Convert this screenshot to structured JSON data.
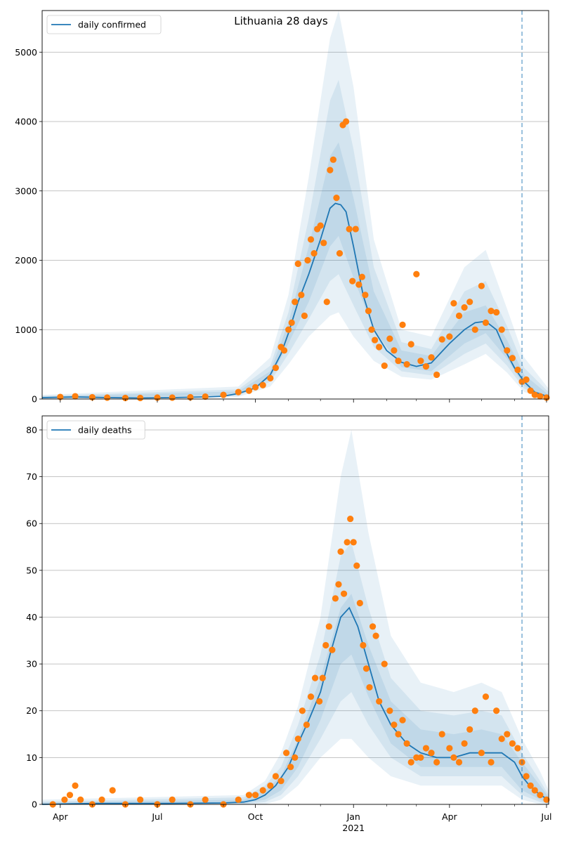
{
  "title": "Lithuania 28 days",
  "colors": {
    "line": "#1f77b4",
    "points": "#ff7f0e",
    "band": "#1f77b4",
    "grid": "#b0b0b0",
    "vline": "#1f77b4"
  },
  "x_axis": {
    "range": [
      "2020-03-15",
      "2021-07-03"
    ],
    "tick_labels": [
      "Apr",
      "Jul",
      "Oct",
      "Jan",
      "Apr",
      "Jul"
    ],
    "tick_dates": [
      "2020-04-01",
      "2020-07-01",
      "2020-10-01",
      "2021-01-01",
      "2021-04-01",
      "2021-07-01"
    ],
    "year_label": "2021",
    "minor_tick_dates": [
      "2020-05-01",
      "2020-06-01",
      "2020-08-01",
      "2020-09-01",
      "2020-11-01",
      "2020-12-01",
      "2021-02-01",
      "2021-03-01",
      "2021-05-01",
      "2021-06-01"
    ]
  },
  "vline_date": "2021-06-08",
  "chart_data": [
    {
      "type": "line",
      "legend": "daily confirmed",
      "legend_loc": "upper left",
      "grid": "y",
      "ylim": [
        0,
        5600
      ],
      "yticks": [
        0,
        1000,
        2000,
        3000,
        4000,
        5000
      ],
      "line": {
        "x": [
          "2020-03-15",
          "2020-04-15",
          "2020-05-15",
          "2020-06-15",
          "2020-07-15",
          "2020-08-15",
          "2020-09-01",
          "2020-09-15",
          "2020-10-01",
          "2020-10-15",
          "2020-10-25",
          "2020-11-01",
          "2020-11-10",
          "2020-11-20",
          "2020-12-01",
          "2020-12-10",
          "2020-12-15",
          "2020-12-20",
          "2020-12-25",
          "2021-01-01",
          "2021-01-10",
          "2021-01-20",
          "2021-02-01",
          "2021-02-15",
          "2021-03-01",
          "2021-03-15",
          "2021-04-01",
          "2021-04-15",
          "2021-04-25",
          "2021-05-05",
          "2021-05-15",
          "2021-05-25",
          "2021-06-01",
          "2021-06-10",
          "2021-06-20",
          "2021-07-03"
        ],
        "y": [
          20,
          30,
          20,
          15,
          20,
          30,
          40,
          80,
          160,
          350,
          650,
          950,
          1400,
          1800,
          2300,
          2750,
          2820,
          2800,
          2700,
          2200,
          1500,
          1000,
          700,
          530,
          470,
          520,
          800,
          1000,
          1100,
          1120,
          1000,
          650,
          450,
          250,
          100,
          30
        ]
      },
      "bands": [
        {
          "level": 1,
          "x": [
            "2020-03-15",
            "2020-09-15",
            "2020-10-15",
            "2020-11-01",
            "2020-11-20",
            "2020-12-10",
            "2020-12-18",
            "2021-01-01",
            "2021-01-20",
            "2021-02-15",
            "2021-03-15",
            "2021-04-15",
            "2021-05-05",
            "2021-05-25",
            "2021-06-10",
            "2021-07-03"
          ],
          "low": [
            0,
            30,
            180,
            500,
            900,
            1200,
            1250,
            900,
            550,
            320,
            280,
            500,
            650,
            380,
            100,
            0
          ],
          "high": [
            60,
            180,
            600,
            1500,
            3200,
            5200,
            5600,
            4500,
            2300,
            1000,
            900,
            1900,
            2150,
            1300,
            600,
            150
          ]
        },
        {
          "level": 2,
          "x": [
            "2020-03-15",
            "2020-09-15",
            "2020-10-15",
            "2020-11-01",
            "2020-11-20",
            "2020-12-10",
            "2020-12-18",
            "2021-01-01",
            "2021-01-20",
            "2021-02-15",
            "2021-03-15",
            "2021-04-15",
            "2021-05-05",
            "2021-05-25",
            "2021-06-10",
            "2021-07-03"
          ],
          "low": [
            0,
            45,
            250,
            650,
            1150,
            1700,
            1800,
            1350,
            750,
            400,
            340,
            650,
            800,
            480,
            150,
            5
          ],
          "high": [
            45,
            140,
            480,
            1250,
            2600,
            4300,
            4600,
            3600,
            1900,
            820,
            720,
            1550,
            1700,
            1050,
            450,
            100
          ]
        },
        {
          "level": 3,
          "x": [
            "2020-03-15",
            "2020-09-15",
            "2020-10-15",
            "2020-11-01",
            "2020-11-20",
            "2020-12-10",
            "2020-12-18",
            "2021-01-01",
            "2021-01-20",
            "2021-02-15",
            "2021-03-15",
            "2021-04-15",
            "2021-05-05",
            "2021-05-25",
            "2021-06-10",
            "2021-07-03"
          ],
          "low": [
            5,
            60,
            300,
            800,
            1400,
            2200,
            2350,
            1750,
            1000,
            460,
            400,
            800,
            950,
            580,
            190,
            10
          ],
          "high": [
            35,
            110,
            400,
            1100,
            2200,
            3500,
            3700,
            2900,
            1550,
            700,
            620,
            1250,
            1350,
            850,
            350,
            60
          ]
        }
      ],
      "points": {
        "x": [
          "2020-04-01",
          "2020-04-15",
          "2020-05-01",
          "2020-05-15",
          "2020-06-01",
          "2020-06-15",
          "2020-07-01",
          "2020-07-15",
          "2020-08-01",
          "2020-08-15",
          "2020-09-01",
          "2020-09-15",
          "2020-09-25",
          "2020-10-01",
          "2020-10-08",
          "2020-10-15",
          "2020-10-20",
          "2020-10-25",
          "2020-10-28",
          "2020-11-01",
          "2020-11-04",
          "2020-11-07",
          "2020-11-10",
          "2020-11-13",
          "2020-11-16",
          "2020-11-19",
          "2020-11-22",
          "2020-11-25",
          "2020-11-28",
          "2020-12-01",
          "2020-12-04",
          "2020-12-07",
          "2020-12-10",
          "2020-12-13",
          "2020-12-16",
          "2020-12-19",
          "2020-12-22",
          "2020-12-25",
          "2020-12-28",
          "2020-12-31",
          "2021-01-03",
          "2021-01-06",
          "2021-01-09",
          "2021-01-12",
          "2021-01-15",
          "2021-01-18",
          "2021-01-21",
          "2021-01-25",
          "2021-01-30",
          "2021-02-04",
          "2021-02-08",
          "2021-02-12",
          "2021-02-16",
          "2021-02-20",
          "2021-02-24",
          "2021-03-01",
          "2021-03-05",
          "2021-03-10",
          "2021-03-15",
          "2021-03-20",
          "2021-03-25",
          "2021-04-01",
          "2021-04-05",
          "2021-04-10",
          "2021-04-15",
          "2021-04-20",
          "2021-04-25",
          "2021-05-01",
          "2021-05-05",
          "2021-05-10",
          "2021-05-15",
          "2021-05-20",
          "2021-05-25",
          "2021-05-30",
          "2021-06-04",
          "2021-06-08",
          "2021-06-12",
          "2021-06-16",
          "2021-06-20",
          "2021-06-25",
          "2021-07-01"
        ],
        "y": [
          30,
          40,
          25,
          20,
          15,
          15,
          20,
          20,
          25,
          35,
          60,
          100,
          120,
          170,
          200,
          300,
          450,
          750,
          700,
          1000,
          1100,
          1400,
          1950,
          1500,
          1200,
          2000,
          2300,
          2100,
          2450,
          2500,
          2250,
          1400,
          3300,
          3450,
          2900,
          2100,
          3950,
          4000,
          2450,
          1700,
          2450,
          1650,
          1760,
          1500,
          1270,
          1000,
          850,
          750,
          480,
          870,
          700,
          550,
          1070,
          500,
          790,
          1800,
          550,
          470,
          600,
          350,
          860,
          900,
          1380,
          1200,
          1320,
          1400,
          1000,
          1630,
          1100,
          1270,
          1250,
          1000,
          700,
          590,
          420,
          250,
          280,
          120,
          60,
          40,
          20
        ]
      }
    },
    {
      "type": "line",
      "legend": "daily deaths",
      "legend_loc": "upper left",
      "grid": "y",
      "ylim": [
        0,
        83
      ],
      "yticks": [
        0,
        10,
        20,
        30,
        40,
        50,
        60,
        70,
        80
      ],
      "line": {
        "x": [
          "2020-03-15",
          "2020-05-01",
          "2020-07-01",
          "2020-09-01",
          "2020-09-20",
          "2020-10-01",
          "2020-10-10",
          "2020-10-20",
          "2020-11-01",
          "2020-11-10",
          "2020-11-20",
          "2020-12-01",
          "2020-12-10",
          "2020-12-20",
          "2020-12-28",
          "2021-01-05",
          "2021-01-15",
          "2021-01-25",
          "2021-02-05",
          "2021-02-20",
          "2021-03-05",
          "2021-03-20",
          "2021-04-05",
          "2021-04-20",
          "2021-05-05",
          "2021-05-20",
          "2021-06-01",
          "2021-06-08",
          "2021-06-15",
          "2021-06-25",
          "2021-07-03"
        ],
        "y": [
          0,
          0.2,
          0.2,
          0.3,
          0.5,
          1,
          2,
          4,
          8,
          13,
          18,
          24,
          32,
          40,
          42,
          38,
          30,
          22,
          17,
          13,
          11,
          10,
          10,
          11,
          11,
          11,
          9,
          6,
          4,
          2,
          1
        ]
      },
      "bands": [
        {
          "level": 1,
          "x": [
            "2020-03-15",
            "2020-09-20",
            "2020-10-10",
            "2020-10-25",
            "2020-11-10",
            "2020-12-01",
            "2020-12-20",
            "2020-12-30",
            "2021-01-15",
            "2021-02-05",
            "2021-03-05",
            "2021-04-05",
            "2021-05-01",
            "2021-05-20",
            "2021-06-08",
            "2021-06-25",
            "2021-07-03"
          ],
          "low": [
            0,
            0,
            0,
            1,
            4,
            10,
            14,
            14,
            10,
            6,
            4,
            4,
            4,
            4,
            1,
            0,
            0
          ],
          "high": [
            1,
            2,
            5,
            11,
            21,
            40,
            70,
            80,
            58,
            36,
            26,
            24,
            26,
            24,
            14,
            7,
            3
          ]
        },
        {
          "level": 2,
          "x": [
            "2020-03-15",
            "2020-09-20",
            "2020-10-10",
            "2020-10-25",
            "2020-11-10",
            "2020-12-01",
            "2020-12-20",
            "2020-12-30",
            "2021-01-15",
            "2021-02-05",
            "2021-03-05",
            "2021-04-05",
            "2021-05-01",
            "2021-05-20",
            "2021-06-08",
            "2021-06-25",
            "2021-07-03"
          ],
          "low": [
            0,
            0,
            0.5,
            2,
            6,
            14,
            22,
            24,
            17,
            10,
            6,
            6,
            6,
            6,
            2,
            0.5,
            0
          ],
          "high": [
            0.6,
            1.5,
            4,
            8,
            17,
            32,
            53,
            56,
            42,
            27,
            20,
            19,
            20,
            19,
            11,
            5,
            2
          ]
        },
        {
          "level": 3,
          "x": [
            "2020-03-15",
            "2020-09-20",
            "2020-10-10",
            "2020-10-25",
            "2020-11-10",
            "2020-12-01",
            "2020-12-20",
            "2020-12-30",
            "2021-01-15",
            "2021-02-05",
            "2021-03-05",
            "2021-04-05",
            "2021-05-01",
            "2021-05-20",
            "2021-06-08",
            "2021-06-25",
            "2021-07-03"
          ],
          "low": [
            0,
            0.2,
            1,
            3,
            8,
            18,
            30,
            32,
            23,
            13,
            8,
            8,
            8,
            8,
            3,
            1,
            0
          ],
          "high": [
            0.4,
            1,
            3,
            6,
            14,
            27,
            42,
            45,
            34,
            22,
            16,
            15,
            16,
            15,
            9,
            4,
            1.5
          ]
        }
      ],
      "points": {
        "x": [
          "2020-03-25",
          "2020-04-05",
          "2020-04-10",
          "2020-04-15",
          "2020-04-20",
          "2020-05-01",
          "2020-05-10",
          "2020-05-20",
          "2020-06-01",
          "2020-06-15",
          "2020-07-01",
          "2020-07-15",
          "2020-08-01",
          "2020-08-15",
          "2020-09-01",
          "2020-09-15",
          "2020-09-25",
          "2020-10-01",
          "2020-10-08",
          "2020-10-15",
          "2020-10-20",
          "2020-10-25",
          "2020-10-30",
          "2020-11-03",
          "2020-11-07",
          "2020-11-10",
          "2020-11-14",
          "2020-11-18",
          "2020-11-22",
          "2020-11-26",
          "2020-11-30",
          "2020-12-03",
          "2020-12-06",
          "2020-12-09",
          "2020-12-12",
          "2020-12-15",
          "2020-12-18",
          "2020-12-20",
          "2020-12-23",
          "2020-12-26",
          "2020-12-29",
          "2021-01-01",
          "2021-01-04",
          "2021-01-07",
          "2021-01-10",
          "2021-01-13",
          "2021-01-16",
          "2021-01-19",
          "2021-01-22",
          "2021-01-25",
          "2021-01-30",
          "2021-02-04",
          "2021-02-08",
          "2021-02-12",
          "2021-02-16",
          "2021-02-20",
          "2021-02-24",
          "2021-03-01",
          "2021-03-05",
          "2021-03-10",
          "2021-03-15",
          "2021-03-20",
          "2021-03-25",
          "2021-04-01",
          "2021-04-05",
          "2021-04-10",
          "2021-04-15",
          "2021-04-20",
          "2021-04-25",
          "2021-05-01",
          "2021-05-05",
          "2021-05-10",
          "2021-05-15",
          "2021-05-20",
          "2021-05-25",
          "2021-05-30",
          "2021-06-04",
          "2021-06-08",
          "2021-06-12",
          "2021-06-16",
          "2021-06-20",
          "2021-06-25",
          "2021-07-01"
        ],
        "y": [
          0,
          1,
          2,
          4,
          1,
          0,
          1,
          3,
          0,
          1,
          0,
          1,
          0,
          1,
          0,
          1,
          2,
          2,
          3,
          4,
          6,
          5,
          11,
          8,
          10,
          14,
          20,
          17,
          23,
          27,
          22,
          27,
          34,
          38,
          33,
          44,
          47,
          54,
          45,
          56,
          61,
          56,
          51,
          43,
          34,
          29,
          25,
          38,
          36,
          22,
          30,
          20,
          17,
          15,
          18,
          13,
          9,
          10,
          10,
          12,
          11,
          9,
          15,
          12,
          10,
          9,
          13,
          16,
          20,
          11,
          23,
          9,
          20,
          14,
          15,
          13,
          12,
          9,
          6,
          4,
          3,
          2,
          1
        ]
      }
    }
  ]
}
